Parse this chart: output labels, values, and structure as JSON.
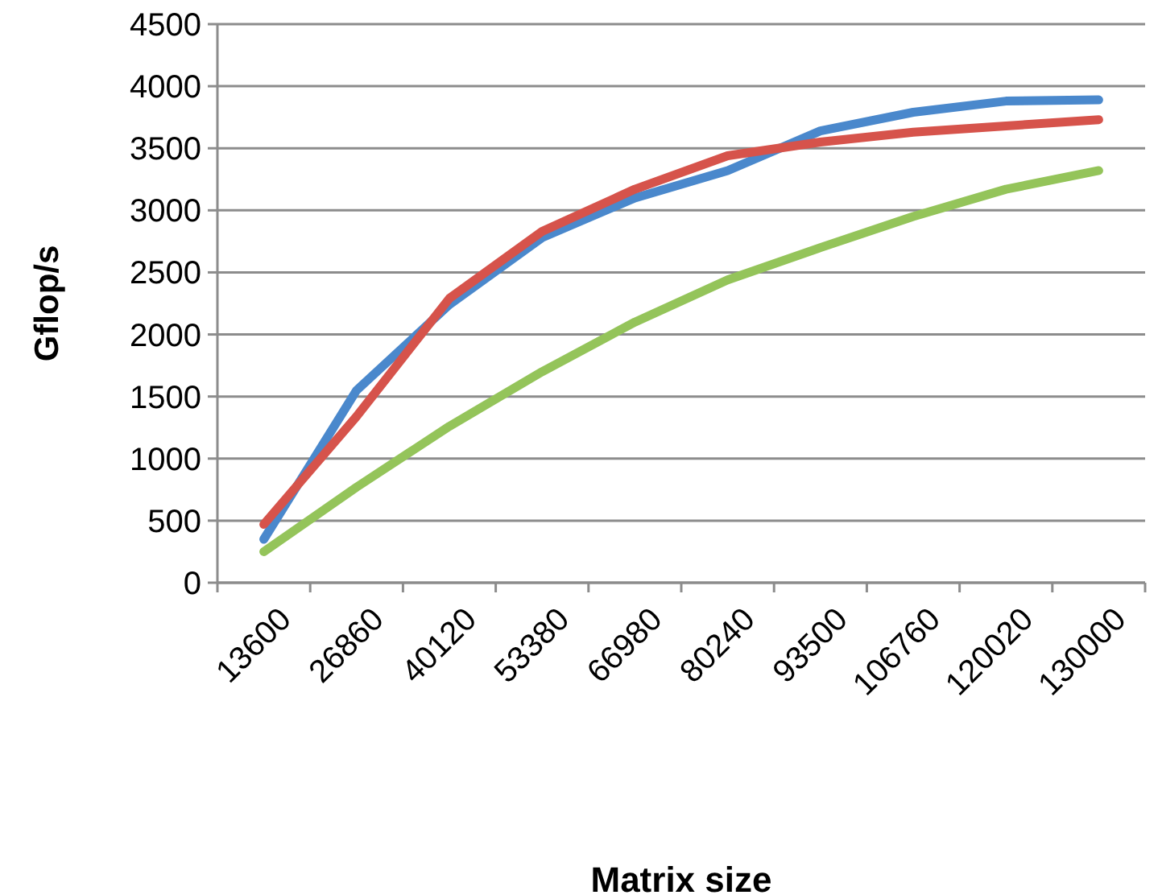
{
  "chart_data": {
    "type": "line",
    "xlabel": "Matrix size",
    "ylabel": "Gflop/s",
    "categories": [
      "13600",
      "26860",
      "40120",
      "53380",
      "66980",
      "80240",
      "93500",
      "106760",
      "120020",
      "130000"
    ],
    "series": [
      {
        "color": "#4a88cc",
        "values": [
          350,
          1550,
          2240,
          2780,
          3100,
          3320,
          3640,
          3790,
          3880,
          3890
        ]
      },
      {
        "color": "#d6534b",
        "values": [
          470,
          1340,
          2290,
          2830,
          3170,
          3440,
          3550,
          3630,
          3680,
          3730
        ]
      },
      {
        "color": "#94c45a",
        "values": [
          250,
          770,
          1260,
          1700,
          2100,
          2440,
          2700,
          2950,
          3170,
          3320
        ]
      }
    ],
    "ylim": [
      0,
      4500
    ],
    "yticks": [
      0,
      500,
      1000,
      1500,
      2000,
      2500,
      3000,
      3500,
      4000,
      4500
    ],
    "grid": "y",
    "marker": "none",
    "line_style": "solid"
  }
}
